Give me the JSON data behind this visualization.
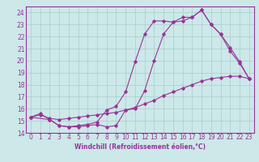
{
  "title": "",
  "xlabel": "Windchill (Refroidissement éolien,°C)",
  "ylabel": "",
  "bg_color": "#cce8e8",
  "grid_color": "#aacccc",
  "line_color": "#993399",
  "marker": "D",
  "markersize": 1.8,
  "linewidth": 0.8,
  "xlim": [
    -0.5,
    23.5
  ],
  "ylim": [
    14,
    24.5
  ],
  "xticks": [
    0,
    1,
    2,
    3,
    4,
    5,
    6,
    7,
    8,
    9,
    10,
    11,
    12,
    13,
    14,
    15,
    16,
    17,
    18,
    19,
    20,
    21,
    22,
    23
  ],
  "yticks": [
    14,
    15,
    16,
    17,
    18,
    19,
    20,
    21,
    22,
    23,
    24
  ],
  "line1_x": [
    0,
    1,
    2,
    3,
    4,
    5,
    6,
    7,
    8,
    9,
    10,
    11,
    12,
    13,
    14,
    15,
    16,
    17,
    18,
    19,
    20,
    21,
    22,
    23
  ],
  "line1_y": [
    15.3,
    15.6,
    15.1,
    14.6,
    14.5,
    14.5,
    14.6,
    14.7,
    14.5,
    14.6,
    15.9,
    16.0,
    17.5,
    20.0,
    22.2,
    23.2,
    23.3,
    23.6,
    24.2,
    23.0,
    22.2,
    20.8,
    19.8,
    18.5
  ],
  "line2_x": [
    0,
    2,
    3,
    4,
    5,
    6,
    7,
    8,
    9,
    10,
    11,
    12,
    13,
    14,
    15,
    16,
    17,
    18,
    19,
    20,
    21,
    22,
    23
  ],
  "line2_y": [
    15.3,
    15.1,
    14.6,
    14.5,
    14.6,
    14.7,
    14.9,
    15.9,
    16.2,
    17.4,
    19.9,
    22.2,
    23.3,
    23.3,
    23.2,
    23.6,
    23.6,
    24.2,
    23.0,
    22.2,
    21.1,
    19.9,
    18.5
  ],
  "line3_x": [
    0,
    1,
    2,
    3,
    4,
    5,
    6,
    7,
    8,
    9,
    10,
    11,
    12,
    13,
    14,
    15,
    16,
    17,
    18,
    19,
    20,
    21,
    22,
    23
  ],
  "line3_y": [
    15.3,
    15.5,
    15.2,
    15.1,
    15.2,
    15.3,
    15.4,
    15.5,
    15.6,
    15.7,
    15.9,
    16.1,
    16.4,
    16.7,
    17.1,
    17.4,
    17.7,
    18.0,
    18.3,
    18.5,
    18.6,
    18.7,
    18.7,
    18.5
  ],
  "tick_fontsize": 5.5,
  "xlabel_fontsize": 5.5
}
